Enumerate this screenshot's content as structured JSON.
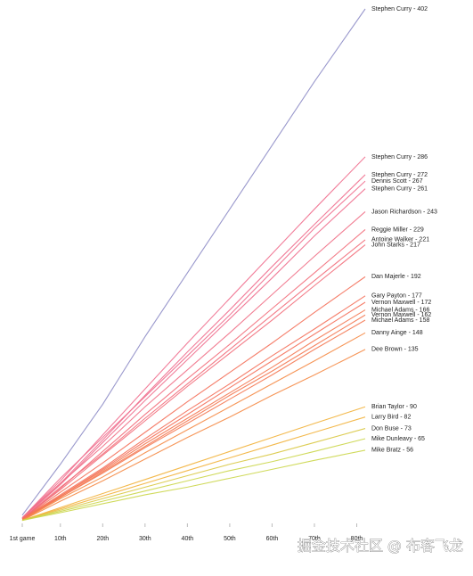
{
  "chart_data": {
    "type": "line",
    "x": [
      1,
      10,
      20,
      30,
      40,
      50,
      60,
      70,
      82
    ],
    "xlim": [
      1,
      82
    ],
    "xticks": [
      {
        "value": 1,
        "label": "1st game"
      },
      {
        "value": 10,
        "label": "10th"
      },
      {
        "value": 20,
        "label": "20th"
      },
      {
        "value": 30,
        "label": "30th"
      },
      {
        "value": 40,
        "label": "40th"
      },
      {
        "value": 50,
        "label": "50th"
      },
      {
        "value": 60,
        "label": "60th"
      },
      {
        "value": 70,
        "label": "70th"
      },
      {
        "value": 80,
        "label": "80th"
      }
    ],
    "ylim": [
      0,
      402
    ],
    "watermark": "掘金技术社区 @ 布客飞龙",
    "series": [
      {
        "name": "Stephen Curry - 402",
        "color": "#8e8dc6",
        "values": [
          5,
          45,
          92,
          145,
          195,
          245,
          295,
          345,
          402
        ]
      },
      {
        "name": "Stephen Curry - 286",
        "color": "#ef6f8e",
        "values": [
          3,
          32,
          68,
          104,
          140,
          175,
          210,
          245,
          286
        ]
      },
      {
        "name": "Stephen Curry - 272",
        "color": "#ef6f8e",
        "values": [
          3,
          30,
          64,
          99,
          133,
          166,
          200,
          233,
          272
        ]
      },
      {
        "name": "Dennis Scott - 267",
        "color": "#ef6f8e",
        "values": [
          3,
          34,
          66,
          98,
          130,
          162,
          196,
          230,
          267
        ]
      },
      {
        "name": "Stephen Curry - 261",
        "color": "#ef6f8e",
        "values": [
          2,
          29,
          62,
          95,
          127,
          159,
          191,
          224,
          261
        ]
      },
      {
        "name": "Jason Richardson - 243",
        "color": "#f06f86",
        "values": [
          3,
          30,
          59,
          90,
          119,
          148,
          178,
          208,
          243
        ]
      },
      {
        "name": "Reggie Miller - 229",
        "color": "#f26d7a",
        "values": [
          2,
          26,
          55,
          84,
          112,
          139,
          167,
          195,
          229
        ]
      },
      {
        "name": "Antoine Walker - 221",
        "color": "#f26d7a",
        "values": [
          2,
          27,
          53,
          81,
          108,
          135,
          162,
          189,
          221
        ]
      },
      {
        "name": "John Starks - 217",
        "color": "#f26d7a",
        "values": [
          2,
          25,
          52,
          79,
          106,
          132,
          158,
          185,
          217
        ]
      },
      {
        "name": "Dan Majerle - 192",
        "color": "#f4705a",
        "values": [
          2,
          23,
          46,
          70,
          94,
          117,
          140,
          164,
          192
        ]
      },
      {
        "name": "Gary Payton - 177",
        "color": "#f4705a",
        "values": [
          2,
          21,
          42,
          65,
          87,
          108,
          130,
          151,
          177
        ]
      },
      {
        "name": "Vernon Maxwell - 172",
        "color": "#f4705a",
        "values": [
          2,
          20,
          41,
          63,
          84,
          105,
          126,
          147,
          172
        ]
      },
      {
        "name": "Michael Adams - 166",
        "color": "#f47852",
        "values": [
          1,
          20,
          40,
          61,
          81,
          101,
          121,
          142,
          166
        ]
      },
      {
        "name": "Vernon Maxwell - 162",
        "color": "#f47852",
        "values": [
          2,
          19,
          39,
          59,
          79,
          99,
          118,
          138,
          162
        ]
      },
      {
        "name": "Michael Adams - 158",
        "color": "#f47852",
        "values": [
          1,
          19,
          38,
          58,
          77,
          96,
          115,
          135,
          158
        ]
      },
      {
        "name": "Danny Ainge - 148",
        "color": "#f58a45",
        "values": [
          1,
          18,
          35,
          54,
          72,
          90,
          108,
          126,
          148
        ]
      },
      {
        "name": "Dee Brown - 135",
        "color": "#f58a45",
        "values": [
          1,
          16,
          32,
          49,
          66,
          82,
          99,
          115,
          135
        ]
      },
      {
        "name": "Brian Taylor - 90",
        "color": "#f2b13a",
        "values": [
          1,
          11,
          22,
          33,
          44,
          55,
          66,
          77,
          90
        ]
      },
      {
        "name": "Larry Bird - 82",
        "color": "#f2b13a",
        "values": [
          1,
          10,
          20,
          30,
          40,
          50,
          60,
          70,
          82
        ]
      },
      {
        "name": "Don Buse - 73",
        "color": "#d9c842",
        "values": [
          1,
          9,
          18,
          27,
          36,
          45,
          53,
          62,
          73
        ]
      },
      {
        "name": "Mike Dunleavy - 65",
        "color": "#cbd64a",
        "values": [
          1,
          8,
          16,
          24,
          32,
          40,
          47,
          55,
          65
        ]
      },
      {
        "name": "Mike Bratz - 56",
        "color": "#cbd64a",
        "values": [
          1,
          7,
          14,
          21,
          27,
          34,
          41,
          48,
          56
        ]
      }
    ]
  }
}
